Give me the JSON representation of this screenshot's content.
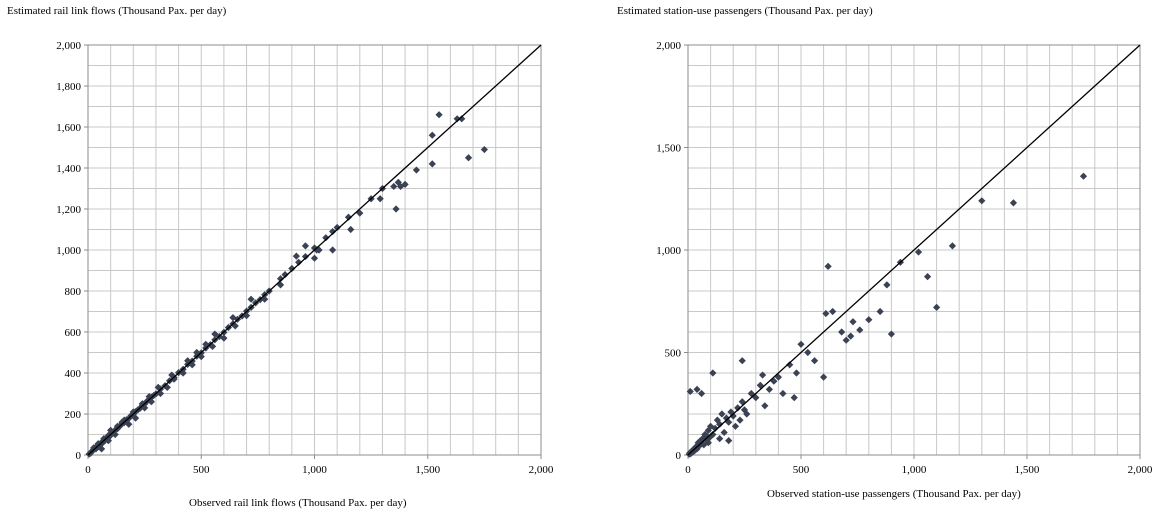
{
  "chart_data": [
    {
      "type": "scatter",
      "ylabel": "Estimated rail link flows (Thousand Pax. per day)",
      "xlabel": "Observed rail link flows (Thousand Pax. per day)",
      "xlim": [
        0,
        2000
      ],
      "ylim": [
        0,
        2000
      ],
      "xticks": [
        0,
        500,
        1000,
        1500,
        2000
      ],
      "xtick_labels": [
        "0",
        "500",
        "1,000",
        "1,500",
        "2,000"
      ],
      "yticks": [
        0,
        200,
        400,
        600,
        800,
        1000,
        1200,
        1400,
        1600,
        1800,
        2000
      ],
      "ytick_labels": [
        "0",
        "200",
        "400",
        "600",
        "800",
        "1,000",
        "1,200",
        "1,400",
        "1,600",
        "1,800",
        "2,000"
      ],
      "grid_step_x": 100,
      "grid_step_y": 100,
      "grid": true,
      "reference_line": "y = x",
      "marker_color": "#3a4253",
      "series": [
        {
          "x": [
            5,
            10,
            15,
            20,
            25,
            30,
            35,
            40,
            45,
            50,
            55,
            60,
            65,
            70,
            75,
            80,
            85,
            90,
            95,
            100,
            110,
            120,
            130,
            140,
            150,
            160,
            170,
            180,
            190,
            200,
            210,
            220,
            230,
            240,
            250,
            260,
            270,
            280,
            290,
            300,
            320,
            340,
            360,
            380,
            400,
            420,
            440,
            460,
            480,
            500,
            520,
            540,
            560,
            580,
            600,
            620,
            640,
            660,
            680,
            700,
            720,
            740,
            760,
            780,
            800,
            850,
            870,
            900,
            930,
            960,
            1000,
            1020,
            1050,
            1080,
            1100,
            1150,
            1200,
            1250,
            1300,
            1350,
            1380,
            1400,
            1450,
            1520,
            1550,
            1650,
            1680,
            1750,
            60,
            90,
            120,
            150,
            180,
            210,
            250,
            280,
            320,
            350,
            380,
            420,
            460,
            500,
            550,
            600,
            650,
            700,
            780,
            850,
            1000,
            1080,
            1160,
            1290,
            1360,
            1520,
            25,
            45,
            70,
            100,
            130,
            160,
            200,
            240,
            270,
            310,
            370,
            440,
            480,
            520,
            560,
            640,
            720,
            920,
            960,
            1010,
            1370,
            1630
          ],
          "y": [
            5,
            8,
            14,
            22,
            26,
            32,
            30,
            45,
            40,
            52,
            50,
            62,
            60,
            72,
            70,
            82,
            80,
            95,
            90,
            105,
            108,
            122,
            128,
            140,
            152,
            158,
            172,
            178,
            192,
            198,
            212,
            220,
            228,
            242,
            248,
            262,
            268,
            282,
            290,
            298,
            322,
            338,
            362,
            378,
            402,
            418,
            442,
            458,
            482,
            498,
            522,
            538,
            562,
            578,
            598,
            622,
            640,
            662,
            678,
            702,
            720,
            742,
            758,
            782,
            800,
            860,
            880,
            910,
            940,
            968,
            1010,
            1000,
            1060,
            1090,
            1110,
            1160,
            1180,
            1250,
            1300,
            1310,
            1310,
            1320,
            1390,
            1560,
            1660,
            1640,
            1450,
            1490,
            30,
            70,
            100,
            160,
            150,
            180,
            230,
            260,
            300,
            330,
            370,
            400,
            440,
            480,
            530,
            570,
            630,
            680,
            760,
            830,
            960,
            1000,
            1100,
            1250,
            1200,
            1420,
            35,
            55,
            80,
            120,
            140,
            170,
            210,
            250,
            285,
            330,
            390,
            460,
            500,
            540,
            590,
            670,
            760,
            970,
            1020,
            1000,
            1330,
            1640
          ]
        }
      ]
    },
    {
      "type": "scatter",
      "ylabel": "Estimated station-use passengers (Thousand Pax. per day)",
      "xlabel": "Observed station-use passengers (Thousand Pax. per day)",
      "xlim": [
        0,
        2000
      ],
      "ylim": [
        0,
        2000
      ],
      "xticks": [
        0,
        500,
        1000,
        1500,
        2000
      ],
      "xtick_labels": [
        "0",
        "500",
        "1,000",
        "1,500",
        "2,000"
      ],
      "yticks": [
        0,
        500,
        1000,
        1500,
        2000
      ],
      "ytick_labels": [
        "0",
        "500",
        "1,000",
        "1,500",
        "2,000"
      ],
      "grid_step_x": 100,
      "grid_step_y": 100,
      "grid": true,
      "reference_line": "y = x",
      "marker_color": "#3a4253",
      "series": [
        {
          "x": [
            5,
            8,
            10,
            12,
            15,
            18,
            20,
            22,
            25,
            28,
            30,
            35,
            40,
            45,
            50,
            55,
            60,
            65,
            70,
            75,
            80,
            85,
            90,
            95,
            100,
            110,
            120,
            130,
            140,
            150,
            160,
            170,
            180,
            190,
            200,
            210,
            220,
            230,
            240,
            250,
            260,
            280,
            300,
            320,
            340,
            360,
            380,
            400,
            420,
            450,
            470,
            480,
            500,
            530,
            560,
            600,
            610,
            620,
            640,
            680,
            700,
            720,
            730,
            760,
            800,
            850,
            880,
            900,
            940,
            1020,
            1060,
            1100,
            1170,
            1300,
            1440,
            1750,
            10,
            40,
            60,
            110,
            240,
            330,
            140,
            90,
            180
          ],
          "y": [
            4,
            10,
            6,
            14,
            9,
            20,
            15,
            25,
            18,
            30,
            22,
            40,
            30,
            60,
            45,
            70,
            55,
            80,
            50,
            100,
            75,
            90,
            120,
            85,
            140,
            100,
            130,
            170,
            150,
            200,
            110,
            180,
            160,
            210,
            190,
            140,
            230,
            170,
            260,
            220,
            200,
            300,
            280,
            340,
            240,
            320,
            360,
            380,
            300,
            440,
            280,
            400,
            540,
            500,
            460,
            380,
            690,
            920,
            700,
            600,
            560,
            580,
            650,
            610,
            660,
            700,
            830,
            590,
            940,
            990,
            870,
            720,
            1020,
            1240,
            1230,
            1360,
            310,
            320,
            300,
            400,
            460,
            390,
            80,
            60,
            70
          ]
        }
      ]
    }
  ]
}
